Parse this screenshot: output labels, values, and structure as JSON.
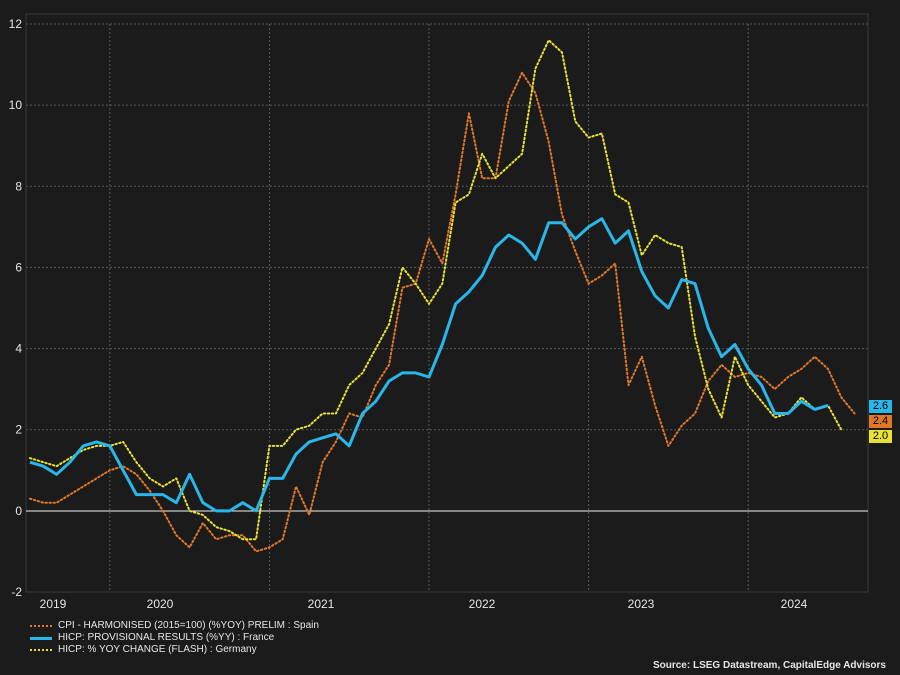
{
  "chart_data": {
    "type": "line",
    "ylim": [
      -2,
      12
    ],
    "yticks": [
      -2,
      0,
      2,
      4,
      6,
      8,
      10,
      12
    ],
    "xlabels": [
      "2019",
      "2020",
      "2021",
      "2022",
      "2023",
      "2024"
    ],
    "x_start": "2019-01",
    "grid": true,
    "series": [
      {
        "name": "CPI - HARMONISED (2015=100) (%YOY) PRELIM : Spain",
        "color": "#e0782a",
        "style": "dotted",
        "end_label": "2.4",
        "values": [
          0.3,
          0.2,
          0.2,
          0.4,
          0.6,
          0.8,
          1.0,
          1.1,
          0.9,
          0.5,
          0.0,
          -0.6,
          -0.9,
          -0.3,
          -0.7,
          -0.6,
          -0.6,
          -1.0,
          -0.9,
          -0.7,
          0.6,
          -0.1,
          1.2,
          1.7,
          2.4,
          2.3,
          3.1,
          3.6,
          5.5,
          5.6,
          6.7,
          6.1,
          7.8,
          9.8,
          8.2,
          8.2,
          10.1,
          10.8,
          10.3,
          9.1,
          7.3,
          6.4,
          5.6,
          5.8,
          6.1,
          3.1,
          3.8,
          2.6,
          1.6,
          2.1,
          2.4,
          3.2,
          3.6,
          3.3,
          3.4,
          3.3,
          3.0,
          3.3,
          3.5,
          3.8,
          3.5,
          2.8,
          2.4
        ]
      },
      {
        "name": "HICP: PROVISIONAL RESULTS (%YY) : France",
        "color": "#29b6e8",
        "style": "solid",
        "end_label": "2.6",
        "values": [
          1.2,
          1.1,
          0.9,
          1.2,
          1.6,
          1.7,
          1.6,
          1.0,
          0.4,
          0.4,
          0.4,
          0.2,
          0.9,
          0.2,
          0.0,
          0.0,
          0.2,
          0.0,
          0.8,
          0.8,
          1.4,
          1.7,
          1.8,
          1.9,
          1.6,
          2.4,
          2.7,
          3.2,
          3.4,
          3.4,
          3.3,
          4.1,
          5.1,
          5.4,
          5.8,
          6.5,
          6.8,
          6.6,
          6.2,
          7.1,
          7.1,
          6.7,
          7.0,
          7.2,
          6.6,
          6.9,
          5.9,
          5.3,
          5.0,
          5.7,
          5.6,
          4.5,
          3.8,
          4.1,
          3.5,
          3.1,
          2.4,
          2.4,
          2.7,
          2.5,
          2.6
        ]
      },
      {
        "name": "HICP: % YOY CHANGE (FLASH) : Germany",
        "color": "#e8e232",
        "style": "dotted",
        "end_label": "2.0",
        "values": [
          1.3,
          1.2,
          1.1,
          1.3,
          1.5,
          1.6,
          1.6,
          1.7,
          1.2,
          0.8,
          0.6,
          0.8,
          0.0,
          -0.1,
          -0.4,
          -0.5,
          -0.7,
          -0.7,
          1.6,
          1.6,
          2.0,
          2.1,
          2.4,
          2.4,
          3.1,
          3.4,
          4.0,
          4.6,
          6.0,
          5.6,
          5.1,
          5.6,
          7.6,
          7.8,
          8.8,
          8.2,
          8.5,
          8.8,
          10.9,
          11.6,
          11.3,
          9.6,
          9.2,
          9.3,
          7.8,
          7.6,
          6.3,
          6.8,
          6.6,
          6.5,
          4.3,
          3.0,
          2.3,
          3.8,
          3.1,
          2.7,
          2.3,
          2.4,
          2.8,
          2.5,
          2.6,
          2.0
        ]
      }
    ]
  },
  "source": "Source: LSEG Datastream, CapitalEdge Advisors"
}
